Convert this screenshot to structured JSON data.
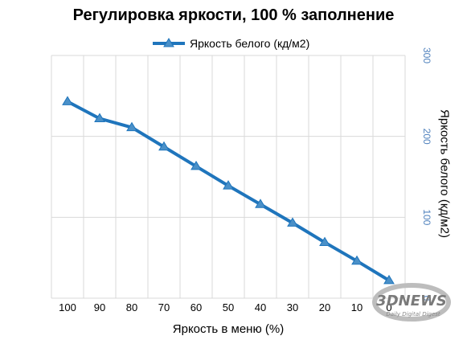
{
  "chart_data": {
    "type": "line",
    "title": "Регулировка яркости, 100 % заполнение",
    "xlabel": "Яркость в меню (%)",
    "ylabel": "Яркость белого (кд/м2)",
    "categories": [
      "100",
      "90",
      "80",
      "70",
      "60",
      "50",
      "40",
      "30",
      "20",
      "10",
      "0"
    ],
    "series": [
      {
        "name": "Яркость белого (кд/м2)",
        "values": [
          243,
          222,
          211,
          187,
          163,
          139,
          116,
          93,
          69,
          46,
          22
        ]
      }
    ],
    "y_axis": {
      "side": "right",
      "ylim": [
        0,
        300
      ],
      "ticks": [
        "0",
        "100",
        "200",
        "300"
      ]
    },
    "grid": "both",
    "legend": "top",
    "colors": {
      "series": "#1f75bc",
      "marker_fill": "#4a90c8",
      "axis_ticks": "#4f81bd",
      "grid": "#d9d9d9"
    }
  },
  "watermark": {
    "text_main": "3DNEWS",
    "text_sub": "Daily Digital Digest"
  }
}
